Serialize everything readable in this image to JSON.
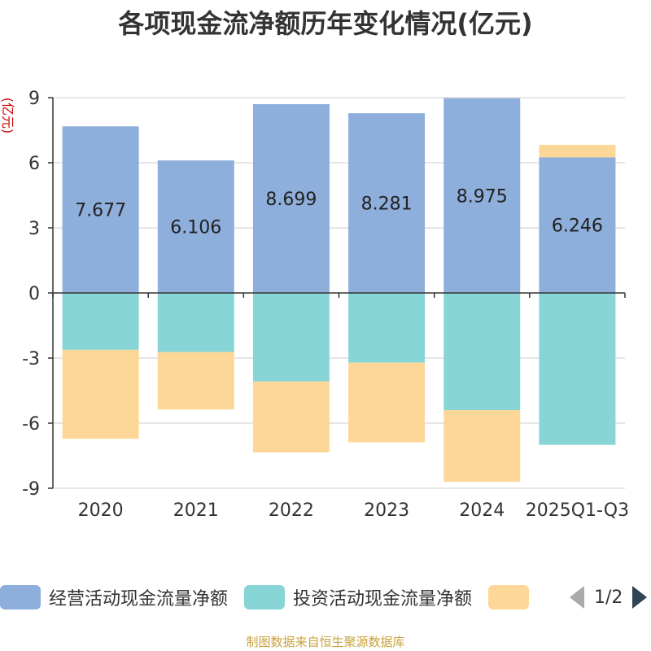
{
  "chart_data": {
    "type": "bar",
    "stacked": true,
    "title": "各项现金流净额历年变化情况(亿元)",
    "ylabel": "(亿元)",
    "ylim": [
      -9,
      9
    ],
    "yticks": [
      -9,
      -6,
      -3,
      0,
      3,
      6,
      9
    ],
    "grid": true,
    "categories": [
      "2020",
      "2021",
      "2022",
      "2023",
      "2024",
      "2025Q1-Q3"
    ],
    "series": [
      {
        "name": "经营活动现金流量净额",
        "color": "#8eaedb",
        "values": [
          7.677,
          6.106,
          8.699,
          8.281,
          8.975,
          6.246
        ]
      },
      {
        "name": "投资活动现金流量净额",
        "color": "#87d5d7",
        "values": [
          -2.62,
          -2.72,
          -4.08,
          -3.21,
          -5.4,
          -7.0
        ]
      },
      {
        "name": "",
        "color": "#fdd797",
        "values": [
          -4.1,
          -2.65,
          -3.27,
          -3.67,
          -3.3,
          0.58
        ]
      }
    ],
    "data_labels": [
      "7.677",
      "6.106",
      "8.699",
      "8.281",
      "8.975",
      "6.246"
    ]
  },
  "legend": {
    "page_text": "1/2"
  },
  "source": "制图数据来自恒生聚源数据库"
}
